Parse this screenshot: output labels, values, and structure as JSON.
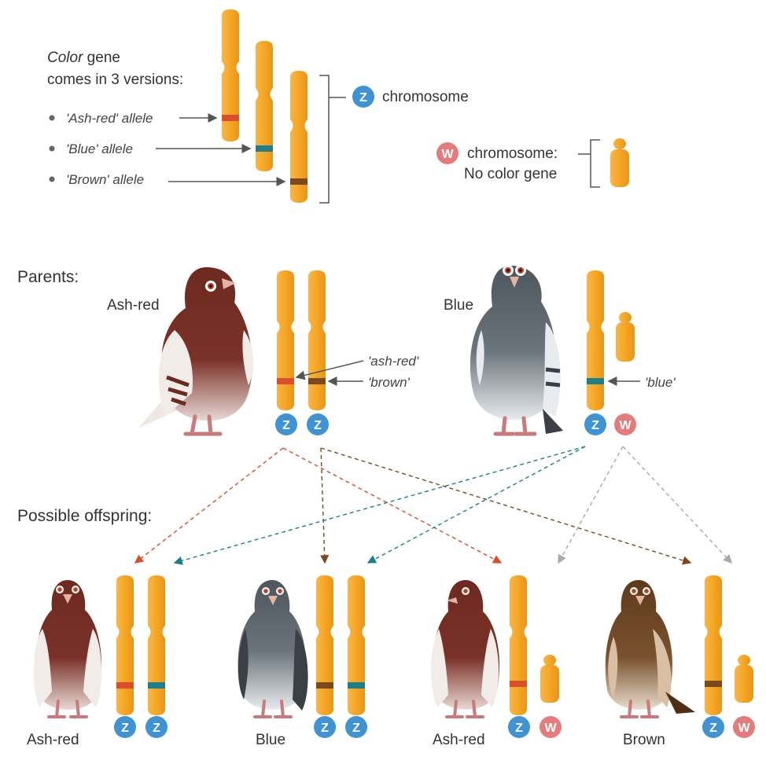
{
  "colors": {
    "chromosome": "#F5A623",
    "ash_red_band": "#D94F2C",
    "blue_band": "#1D7F8C",
    "brown_band": "#7A4A1E",
    "z_badge": "#3F93D3",
    "w_badge": "#E47C7C",
    "ash_red_bird": "#6E2A20",
    "blue_bird": "#555D64",
    "brown_bird": "#6B4322"
  },
  "legend": {
    "color_word": "Color",
    "title_rest": " gene",
    "title_line2": "comes in 3 versions:",
    "alleles": [
      "'Ash-red' allele",
      "'Blue' allele",
      "'Brown' allele"
    ],
    "z_badge": "Z",
    "z_label": "chromosome",
    "w_badge": "W",
    "w_label_line1": "chromosome:",
    "w_label_line2": "No color gene"
  },
  "parents": {
    "heading": "Parents:",
    "male_label": "Ash-red",
    "female_label": "Blue",
    "annotation_ash_red": "'ash-red'",
    "annotation_brown": "'brown'",
    "annotation_blue": "'blue'"
  },
  "offspring": {
    "heading": "Possible offspring:",
    "labels": [
      "Ash-red",
      "Blue",
      "Ash-red",
      "Brown"
    ]
  }
}
